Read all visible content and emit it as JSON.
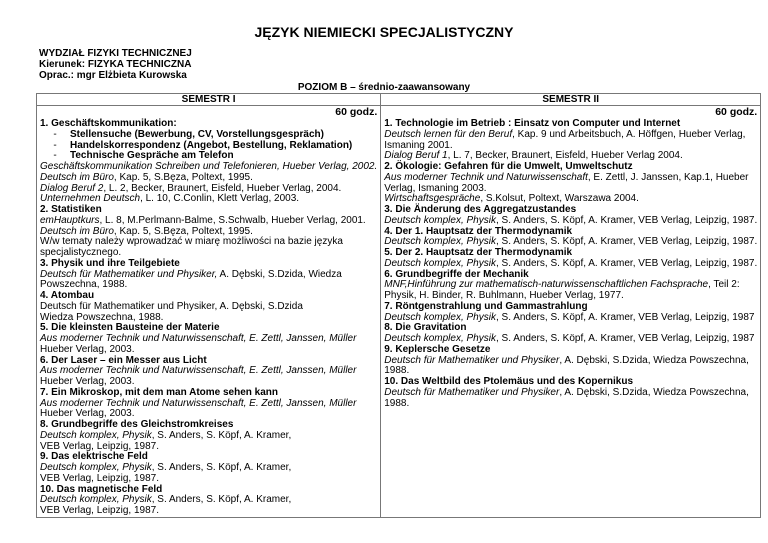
{
  "title": "JĘZYK NIEMIECKI SPECJALISTYCZNY",
  "meta": {
    "faculty": "WYDZIAŁ FIZYKI TECHNICZNEJ",
    "direction": "Kierunek: FIZYKA TECHNICZNA",
    "author": "Oprac.: mgr Elżbieta Kurowska"
  },
  "level": "POZIOM B – średnio-zaawansowany",
  "semesters": [
    {
      "header": "SEMESTR I",
      "hours": "60 godz.",
      "lines": [
        {
          "s": "b",
          "p": [
            [
              "1. Geschäftskommunikation:",
              0
            ]
          ]
        },
        {
          "s": "bullet",
          "p": [
            [
              "Stellensuche (Bewerbung, CV, Vorstellungsgespräch)",
              0
            ]
          ]
        },
        {
          "s": "bullet",
          "p": [
            [
              "Handelskorrespondenz (Angebot, Bestellung, Reklamation)",
              0
            ]
          ]
        },
        {
          "s": "bullet",
          "p": [
            [
              "Technische Gespräche am Telefon",
              0
            ]
          ]
        },
        {
          "s": "n",
          "p": [
            [
              "Geschäftskommunikation Schreiben und Telefonieren, Hueber Verlag, 2002.",
              1
            ]
          ]
        },
        {
          "s": "n",
          "p": [
            [
              "Deutsch im Büro",
              1
            ],
            [
              ", Kap. 5, S.Bęza, Poltext, 1995.",
              0
            ]
          ]
        },
        {
          "s": "n",
          "p": [
            [
              "Dialog Beruf 2",
              1
            ],
            [
              ", L. 2, Becker, Braunert, Eisfeld, Hueber Verlag, 2004.",
              0
            ]
          ]
        },
        {
          "s": "n",
          "p": [
            [
              "Unternehmen Deutsch",
              1
            ],
            [
              ", L. 10, C.Conlin, Klett Verlag, 2003.",
              0
            ]
          ]
        },
        {
          "s": "b",
          "p": [
            [
              "2. Statistiken",
              0
            ]
          ]
        },
        {
          "s": "n",
          "p": [
            [
              "emHauptkurs",
              1
            ],
            [
              ", L. 8, M.Perlmann-Balme, S.Schwalb, Hueber Verlag, 2001.",
              0
            ]
          ]
        },
        {
          "s": "n",
          "p": [
            [
              "Deutsch im Büro",
              1
            ],
            [
              ", Kap. 5, S.Bęza, Poltext, 1995.",
              0
            ]
          ]
        },
        {
          "s": "n",
          "p": [
            [
              "W/w tematy należy wprowadzać w miarę możliwości na bazie języka",
              0
            ]
          ]
        },
        {
          "s": "n",
          "p": [
            [
              "specjalistycznego.",
              0
            ]
          ]
        },
        {
          "s": "b",
          "p": [
            [
              "3. Physik und ihre Teilgebiete",
              0
            ]
          ]
        },
        {
          "s": "n",
          "p": [
            [
              "Deutsch für Mathematiker und Physiker,",
              1
            ],
            [
              " A. Dębski, S.Dzida,  Wiedza",
              0
            ]
          ]
        },
        {
          "s": "n",
          "p": [
            [
              "Powszechna, 1988.",
              0
            ]
          ]
        },
        {
          "s": "b",
          "p": [
            [
              "4. Atombau",
              0
            ]
          ]
        },
        {
          "s": "n",
          "p": [
            [
              "Deutsch für Mathematiker und Physiker, A. Dębski, S.Dzida",
              0
            ]
          ]
        },
        {
          "s": "n",
          "p": [
            [
              "Wiedza Powszechna, 1988.",
              0
            ]
          ]
        },
        {
          "s": "b",
          "p": [
            [
              "5.  Die kleinsten Bausteine der Materie",
              0
            ]
          ]
        },
        {
          "s": "n",
          "p": [
            [
              "Aus moderner Technik und Naturwissenschaft, E. Zettl, Janssen, Müller",
              1
            ]
          ]
        },
        {
          "s": "n",
          "p": [
            [
              "Hueber Verlag, 2003.",
              0
            ]
          ]
        },
        {
          "s": "b",
          "p": [
            [
              "6. Der Laser – ein Messer aus Licht",
              0
            ]
          ]
        },
        {
          "s": "n",
          "p": [
            [
              "Aus moderner Technik und Naturwissenschaft, E. Zettl, Janssen, Müller",
              1
            ]
          ]
        },
        {
          "s": "n",
          "p": [
            [
              "Hueber Verlag, 2003.",
              0
            ]
          ]
        },
        {
          "s": "b",
          "p": [
            [
              "7. Ein Mikroskop, mit dem man Atome sehen kann",
              0
            ]
          ]
        },
        {
          "s": "n",
          "p": [
            [
              "Aus moderner Technik und Naturwissenschaft, E. Zettl, Janssen, Müller",
              1
            ]
          ]
        },
        {
          "s": "n",
          "p": [
            [
              "Hueber Verlag, 2003.",
              0
            ]
          ]
        },
        {
          "s": "b",
          "p": [
            [
              "8. Grundbegriffe des Gleichstromkreises",
              0
            ]
          ]
        },
        {
          "s": "n",
          "p": [
            [
              "Deutsch komplex, Physik",
              1
            ],
            [
              ", S. Anders, S. Köpf, A. Kramer,",
              0
            ]
          ]
        },
        {
          "s": "n",
          "p": [
            [
              "VEB Verlag, Leipzig, 1987.",
              0
            ]
          ]
        },
        {
          "s": "b",
          "p": [
            [
              "9. Das elektrische Feld",
              0
            ]
          ]
        },
        {
          "s": "n",
          "p": [
            [
              "Deutsch komplex, Physik",
              1
            ],
            [
              ", S. Anders, S. Köpf, A. Kramer,",
              0
            ]
          ]
        },
        {
          "s": "n",
          "p": [
            [
              "VEB Verlag, Leipzig, 1987.",
              0
            ]
          ]
        },
        {
          "s": "b",
          "p": [
            [
              "10. Das magnetische Feld",
              0
            ]
          ]
        },
        {
          "s": "n",
          "p": [
            [
              "Deutsch komplex, Physik",
              1
            ],
            [
              ", S. Anders, S. Köpf, A. Kramer,",
              0
            ]
          ]
        },
        {
          "s": "n",
          "p": [
            [
              "VEB Verlag, Leipzig, 1987.",
              0
            ]
          ]
        }
      ]
    },
    {
      "header": "SEMESTR II",
      "hours": "60 godz.",
      "lines": [
        {
          "s": "b",
          "p": [
            [
              "1. Technologie im Betrieb : Einsatz von Computer und Internet",
              0
            ]
          ]
        },
        {
          "s": "n",
          "p": [
            [
              "Deutsch lernen für den Beruf",
              1
            ],
            [
              ", Kap. 9 und Arbeitsbuch, A. Höffgen, Hueber Verlag,",
              0
            ]
          ]
        },
        {
          "s": "n",
          "p": [
            [
              "Ismaning 2001.",
              0
            ]
          ]
        },
        {
          "s": "n",
          "p": [
            [
              "Dialog Beruf 1",
              1
            ],
            [
              ", L. 7, Becker, Braunert, Eisfeld, Hueber Verlag 2004.",
              0
            ]
          ]
        },
        {
          "s": "b",
          "p": [
            [
              "2. Ökologie: Gefahren für die Umwelt, Umweltschutz",
              0
            ]
          ]
        },
        {
          "s": "n",
          "p": [
            [
              "Aus moderner Technik und Naturwissenschaft",
              1
            ],
            [
              ", E. Zettl, J. Janssen, Kap.1, Hueber",
              0
            ]
          ]
        },
        {
          "s": "n",
          "p": [
            [
              "Verlag, Ismaning  2003.",
              0
            ]
          ]
        },
        {
          "s": "n",
          "p": [
            [
              "Wirtschaftsgespräche",
              1
            ],
            [
              ", S.Kolsut, Poltext, Warszawa 2004.",
              0
            ]
          ]
        },
        {
          "s": "b",
          "p": [
            [
              "3. Die Änderung des Aggregatzustandes",
              0
            ]
          ]
        },
        {
          "s": "n",
          "p": [
            [
              "Deutsch komplex, Physik",
              1
            ],
            [
              ", S. Anders, S. Köpf, A. Kramer, VEB Verlag, Leipzig, 1987.",
              0
            ]
          ]
        },
        {
          "s": "b",
          "p": [
            [
              "4.  Der 1. Hauptsatz der Thermodynamik",
              0
            ]
          ]
        },
        {
          "s": "n",
          "p": [
            [
              "Deutsch komplex, Physik",
              1
            ],
            [
              ", S. Anders, S. Köpf, A. Kramer, VEB Verlag, Leipzig, 1987.",
              0
            ]
          ]
        },
        {
          "s": "b",
          "p": [
            [
              "5. Der 2. Hauptsatz der Thermodynamik",
              0
            ]
          ]
        },
        {
          "s": "n",
          "p": [
            [
              "Deutsch komplex, Physik",
              1
            ],
            [
              ", S. Anders, S. Köpf, A. Kramer, VEB Verlag, Leipzig, 1987.",
              0
            ]
          ]
        },
        {
          "s": "b",
          "p": [
            [
              "6. Grundbegriffe der Mechanik",
              0
            ]
          ]
        },
        {
          "s": "n",
          "p": [
            [
              "MNF,Hinführung zur mathematisch-naturwissenschaftlichen Fachsprache",
              1
            ],
            [
              ", Teil 2:",
              0
            ]
          ]
        },
        {
          "s": "n",
          "p": [
            [
              "Physik, H. Binder, R. Buhlmann, Hueber Verlag,  1977.",
              0
            ]
          ]
        },
        {
          "s": "b",
          "p": [
            [
              "7. Röntgenstrahlung und Gammastrahlung",
              0
            ]
          ]
        },
        {
          "s": "n",
          "p": [
            [
              "Deutsch komplex, Physik",
              1
            ],
            [
              ", S. Anders, S. Köpf, A. Kramer, VEB Verlag, Leipzig, 1987",
              0
            ]
          ]
        },
        {
          "s": "b",
          "p": [
            [
              "8. Die Gravitation",
              0
            ]
          ]
        },
        {
          "s": "n",
          "p": [
            [
              "Deutsch komplex, Physik",
              1
            ],
            [
              ", S. Anders, S. Köpf, A. Kramer, VEB Verlag, Leipzig, 1987",
              0
            ]
          ]
        },
        {
          "s": "b",
          "p": [
            [
              "9. Keplersche Gesetze",
              0
            ]
          ]
        },
        {
          "s": "n",
          "p": [
            [
              "Deutsch für Mathematiker und Physiker",
              1
            ],
            [
              ", A. Dębski, S.Dzida, Wiedza Powszechna,",
              0
            ]
          ]
        },
        {
          "s": "n",
          "p": [
            [
              "1988.",
              0
            ]
          ]
        },
        {
          "s": "b",
          "p": [
            [
              "10. Das Weltbild des Ptolemäus und des Kopernikus",
              0
            ]
          ]
        },
        {
          "s": "n",
          "p": [
            [
              "Deutsch für Mathematiker und Physiker",
              1
            ],
            [
              ", A. Dębski, S.Dzida, Wiedza Powszechna,",
              0
            ]
          ]
        },
        {
          "s": "n",
          "p": [
            [
              "1988.",
              0
            ]
          ]
        }
      ]
    }
  ]
}
